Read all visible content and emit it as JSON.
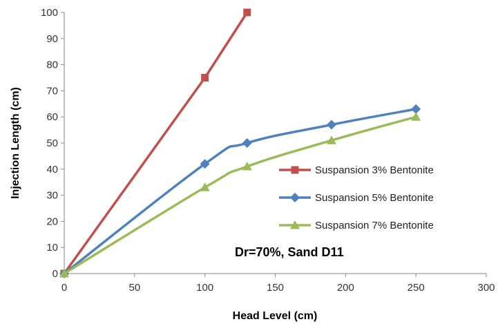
{
  "chart_data": {
    "type": "line",
    "xlabel": "Head Level (cm)",
    "ylabel": "Injection Length  (cm)",
    "xlim": [
      0,
      300
    ],
    "ylim": [
      0,
      100
    ],
    "x_ticks": [
      0,
      50,
      100,
      150,
      200,
      250,
      300
    ],
    "y_ticks": [
      0,
      10,
      20,
      30,
      40,
      50,
      60,
      70,
      80,
      90,
      100
    ],
    "grid": false,
    "legend_position": "right",
    "annotation": "Dr=70%, Sand  D11",
    "series": [
      {
        "name": "Suspansion 3% Bentonite",
        "color": "#C0504D",
        "marker": "square",
        "smooth": false,
        "points": [
          [
            0,
            0
          ],
          [
            100,
            75
          ],
          [
            130,
            100
          ]
        ]
      },
      {
        "name": "Suspansion 5% Bentonite",
        "color": "#4F81BD",
        "marker": "diamond",
        "smooth": true,
        "points": [
          [
            0,
            0
          ],
          [
            100,
            42
          ],
          [
            130,
            50
          ],
          [
            190,
            57
          ],
          [
            250,
            63
          ]
        ]
      },
      {
        "name": "Suspansion 7% Bentonite",
        "color": "#9BBB59",
        "marker": "triangle",
        "smooth": true,
        "points": [
          [
            0,
            0
          ],
          [
            100,
            33
          ],
          [
            130,
            41
          ],
          [
            190,
            51
          ],
          [
            250,
            60
          ]
        ]
      }
    ]
  }
}
